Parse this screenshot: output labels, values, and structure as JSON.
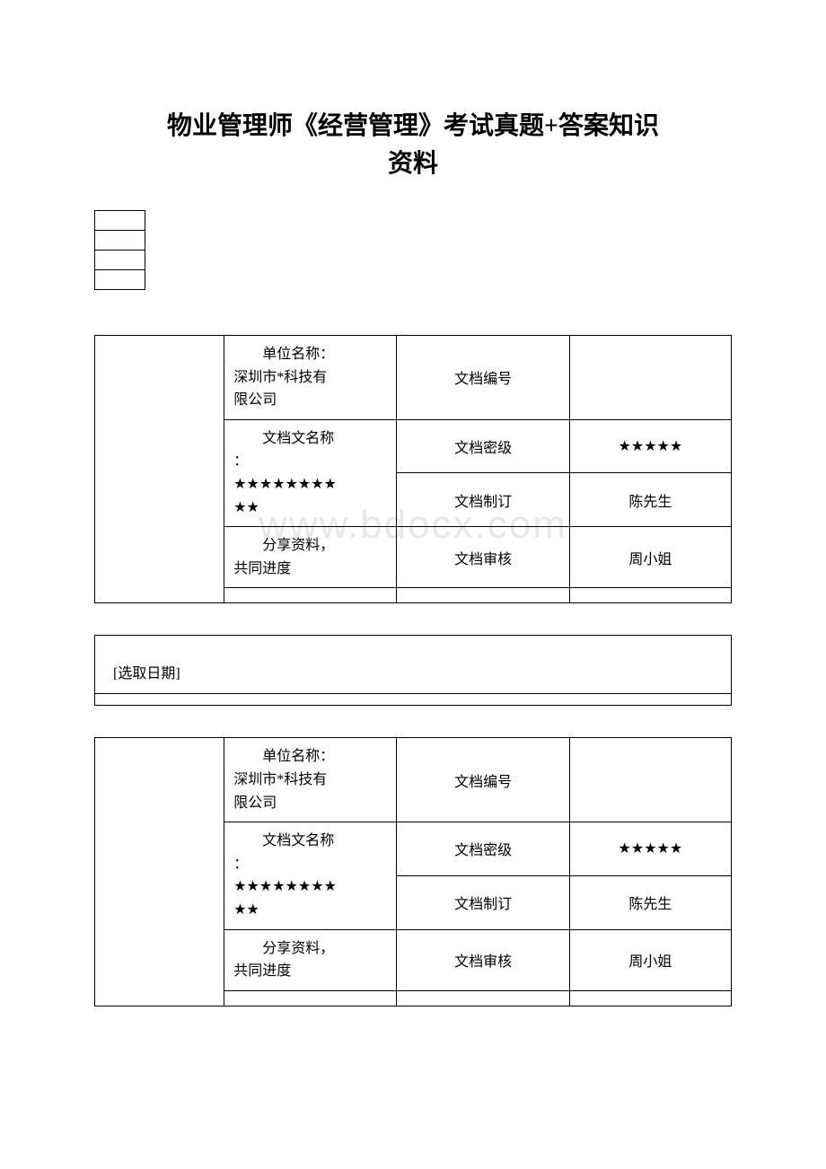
{
  "title_line1": "物业管理师《经营管理》考试真题+答案知识",
  "title_line2": "资料",
  "watermark": "www.bdocx.com",
  "date_label": "[选取日期]",
  "info_table": {
    "rows": [
      {
        "col2_line1": "单位名称：",
        "col2_line2": "深圳市*科技有",
        "col2_line3": "限公司",
        "col3": "文档编号",
        "col4": ""
      },
      {
        "col2": "文档文名称",
        "col3": "文档密级",
        "col4": "★★★★★"
      },
      {
        "col2_line1": "：",
        "col2_line2": "★★★★★★★★",
        "col2_line3": "★★",
        "col3": "文档制订",
        "col4": "陈先生"
      },
      {
        "col2_line1": "分享资料，",
        "col2_line2": "共同进度",
        "col3": "文档审核",
        "col4": "周小姐"
      }
    ]
  }
}
